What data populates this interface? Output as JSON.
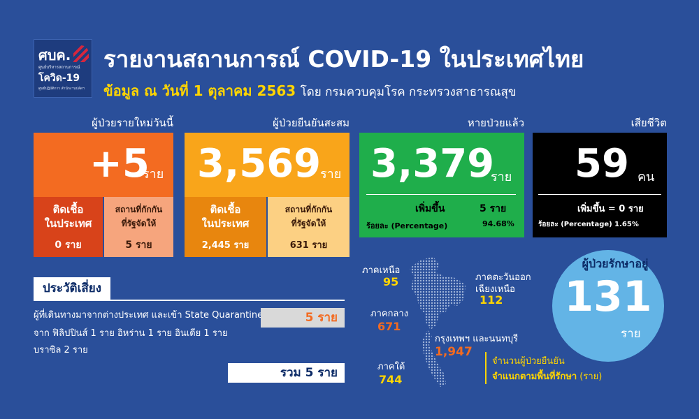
{
  "logo": {
    "main": "ศบค.",
    "sub": "ศูนย์บริหารสถานการณ์",
    "name": "โควิด-19",
    "tag": "ศูนย์ปฏิบัติการ สำนักงานปลัดฯ"
  },
  "header": {
    "title": "รายงานสถานการณ์ COVID-19 ในประเทศไทย",
    "subtitle_bold": "ข้อมูล ณ วันที่ 1 ตุลาคม 2563",
    "subtitle_rest": "โดย กรมควบคุมโรค กระทรวงสาธารณสุข"
  },
  "new_cases": {
    "label": "ผู้ป่วยรายใหม่วันนี้",
    "value": "+5",
    "unit": "ราย",
    "local_label": "ติดเชื้อ\nในประเทศ",
    "local_value": "0 ราย",
    "quarantine_label": "สถานที่กักกัน\nที่รัฐจัดให้",
    "quarantine_value": "5 ราย",
    "colors": {
      "main": "#f36b21",
      "local": "#d8431a",
      "quarantine": "#f6a57d"
    }
  },
  "cumulative": {
    "label": "ผู้ป่วยยืนยันสะสม",
    "value": "3,569",
    "unit": "ราย",
    "local_label": "ติดเชื้อ\nในประเทศ",
    "local_value": "2,445 ราย",
    "quarantine_label": "สถานที่กักกัน\nที่รัฐจัดให้",
    "quarantine_value": "631 ราย",
    "colors": {
      "main": "#f9a51a",
      "local": "#e8860e",
      "quarantine": "#fcd083"
    }
  },
  "recovered": {
    "label": "หายป่วยแล้ว",
    "value": "3,379",
    "unit": "ราย",
    "increase_label": "เพิ่มขึ้น",
    "increase_value": "5 ราย",
    "pct_label": "ร้อยละ (Percentage)",
    "pct_value": "94.68%",
    "color": "#1fae4b"
  },
  "deaths": {
    "label": "เสียชีวิต",
    "value": "59",
    "unit": "คน",
    "increase_text": "เพิ่มขึ้น = 0 ราย",
    "pct_text": "ร้อยละ (Percentage) 1.65%",
    "color": "#000000"
  },
  "risk": {
    "title": "ประวัติเสี่ยง",
    "line1": "ผู้ที่เดินทางมาจากต่างประเทศ  และเข้า  State Quarantine",
    "line2": "จาก ฟิลิปปินส์ 1 ราย  อิหร่าน 1 ราย อินเดีย 1 ราย",
    "line3": "บราซิล 2 ราย",
    "value": "5 ราย",
    "total": "รวม 5 ราย"
  },
  "map": {
    "north_label": "ภาคเหนือ",
    "north_value": "95",
    "northeast_label1": "ภาคตะวันออก",
    "northeast_label2": "เฉียงเหนือ",
    "northeast_value": "112",
    "central_label": "ภาคกลาง",
    "central_value": "671",
    "bangkok_label": "กรุงเทพฯ และนนทบุรี",
    "bangkok_value": "1,947",
    "south_label": "ภาคใต้",
    "south_value": "744",
    "caption1": "จำนวนผู้ป่วยยืนยัน",
    "caption2": "จำแนกตามพื้นที่รักษา",
    "caption_unit": "(ราย)"
  },
  "treating": {
    "label": "ผู้ป่วยรักษาอยู่",
    "value": "131",
    "unit": "ราย",
    "color": "#63b4e6"
  }
}
